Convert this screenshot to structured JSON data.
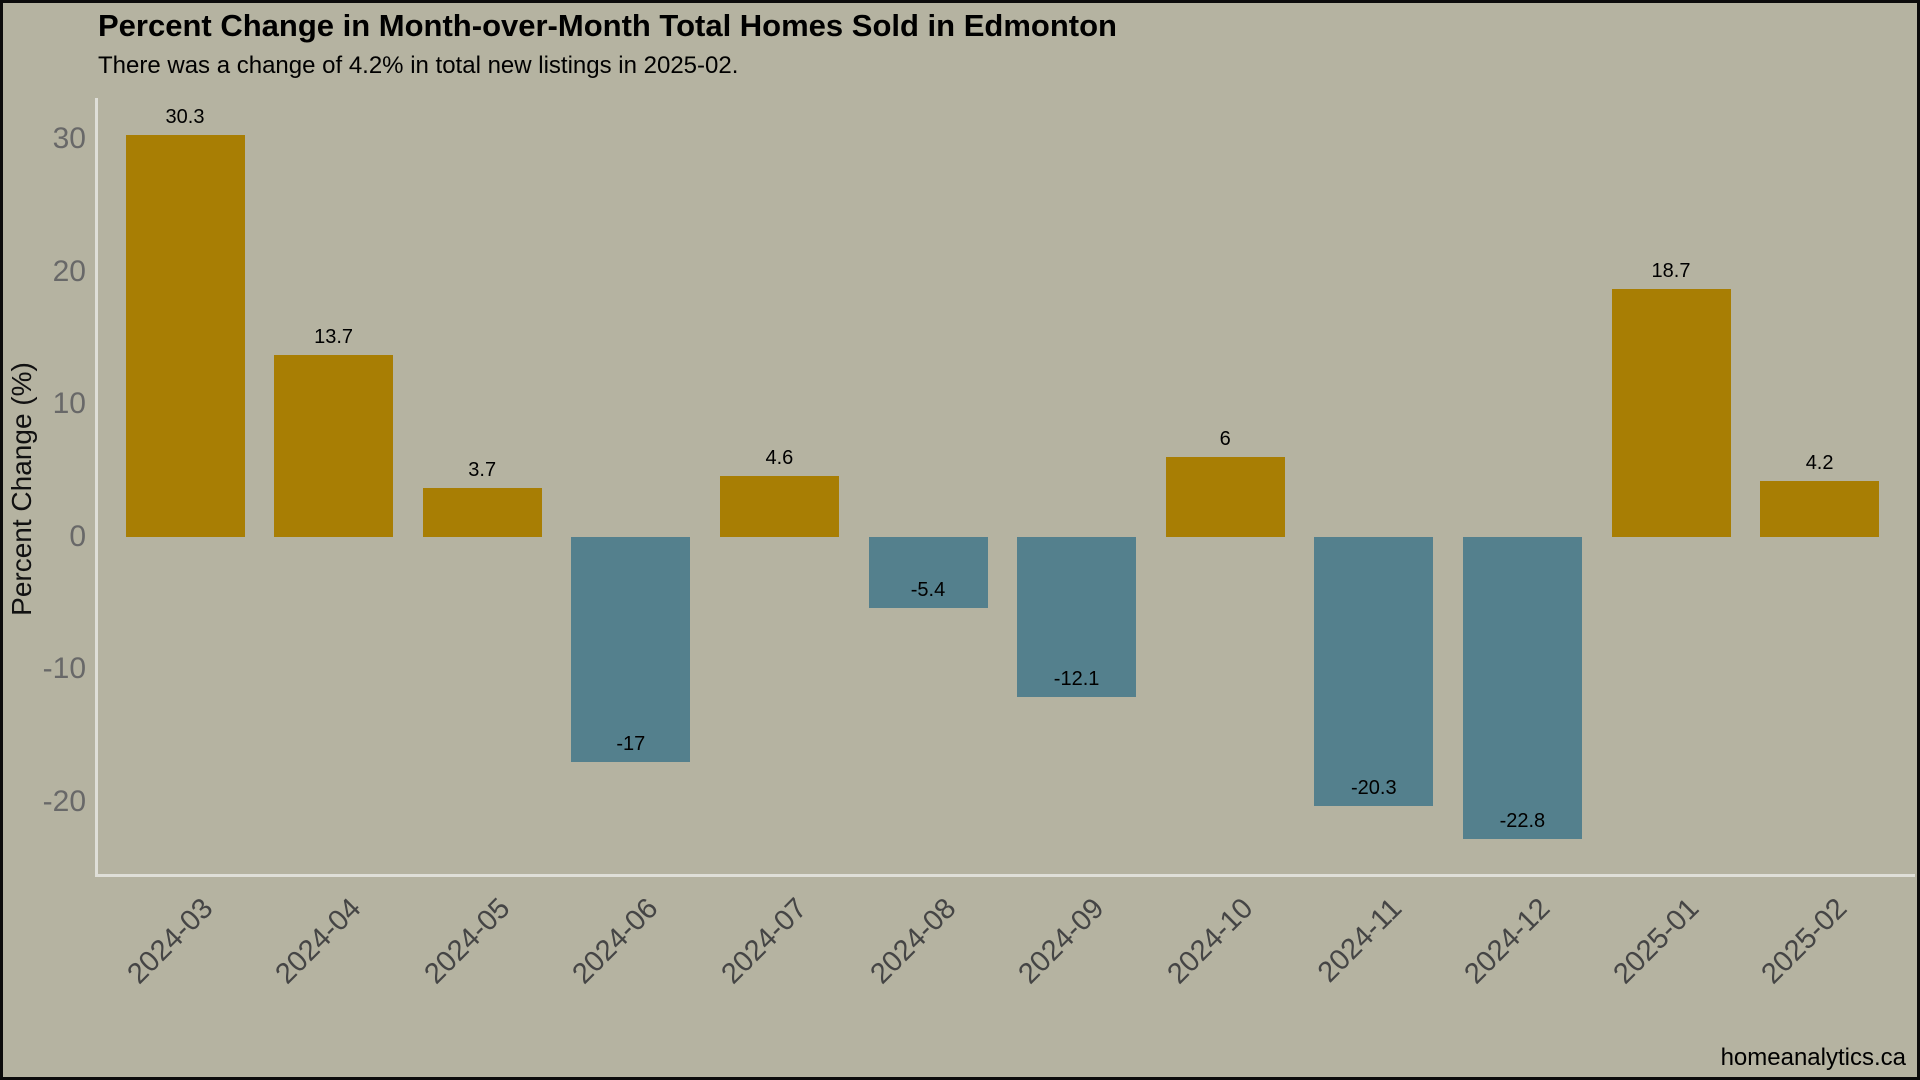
{
  "page": {
    "watermark": "homeanalytics.ca"
  },
  "chart_data": {
    "type": "bar",
    "title": "Percent Change in Month-over-Month Total Homes Sold in Edmonton",
    "subtitle": "There was a change of 4.2% in total new listings in 2025-02.",
    "ylabel": "Percent Change (%)",
    "xlabel": "",
    "categories": [
      "2024-03",
      "2024-04",
      "2024-05",
      "2024-06",
      "2024-07",
      "2024-08",
      "2024-09",
      "2024-10",
      "2024-11",
      "2024-12",
      "2025-01",
      "2025-02"
    ],
    "values": [
      30.3,
      13.7,
      3.7,
      -17,
      4.6,
      -5.4,
      -12.1,
      6,
      -20.3,
      -22.8,
      18.7,
      4.2
    ],
    "value_labels": [
      "30.3",
      "13.7",
      "3.7",
      "-17",
      "4.6",
      "-5.4",
      "-12.1",
      "6",
      "-20.3",
      "-22.8",
      "18.7",
      "4.2"
    ],
    "yticks": [
      30,
      20,
      10,
      0,
      -10,
      -20
    ],
    "ylim": [
      -25.6,
      33.1
    ],
    "grid": false,
    "legend": false,
    "colors": {
      "positive_bar": "#a87e04",
      "negative_bar": "#54808d",
      "background": "#b5b3a1",
      "axis_line": "#dfdfd8",
      "ytick_text": "#686868",
      "xtick_text": "#454545",
      "label_text": "#000000"
    }
  }
}
